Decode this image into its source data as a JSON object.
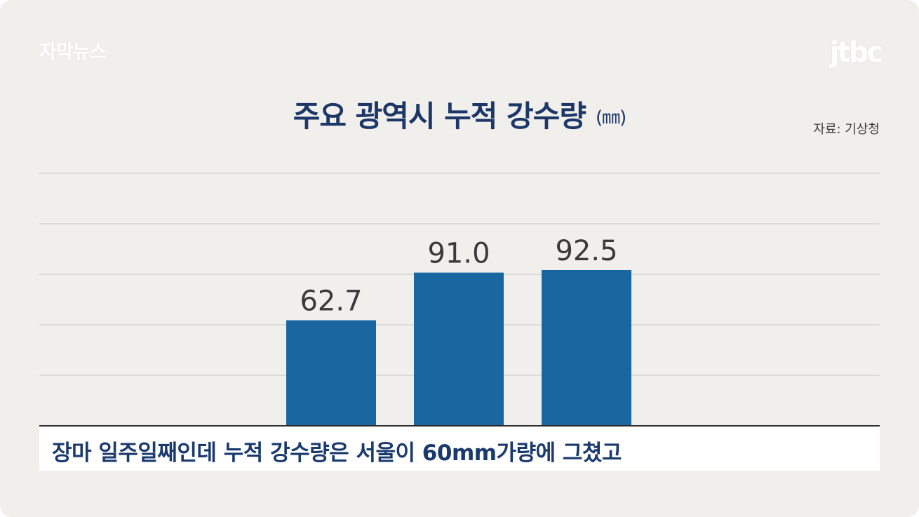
{
  "brand": "자막뉴스",
  "logo": "jtbc",
  "source": "자료: 기상청",
  "caption": "장마 일주일째인데 누적 강수량은 서울이 60mm가량에 그쳤고",
  "colors": {
    "background": "#f1efec",
    "bar": "#1a66a0",
    "title": "#1c3768",
    "gridline": "#dcdad6",
    "baseline": "#2b2b2b",
    "value_label": "#3a3a3a"
  },
  "chart_data": {
    "type": "bar",
    "title": "주요 광역시 누적 강수량",
    "unit": "(㎜)",
    "categories": [
      "",
      "",
      "",
      "",
      "",
      ""
    ],
    "values": [
      null,
      null,
      62.7,
      91.0,
      92.5,
      null
    ],
    "value_labels": [
      "",
      "",
      "62.7",
      "91.0",
      "92.5",
      ""
    ],
    "ylim": [
      0,
      150
    ],
    "grid": true,
    "legend": "none"
  }
}
